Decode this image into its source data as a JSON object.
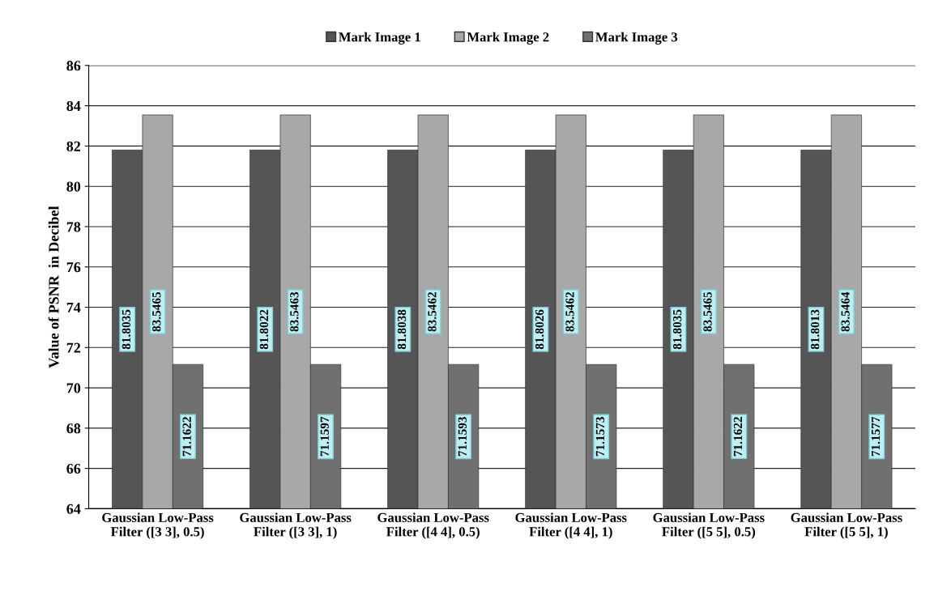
{
  "chart_data": {
    "type": "bar",
    "ylabel": "Value of PSNR  in Decibel",
    "categories": [
      "Gaussian Low-Pass\nFilter ([3 3], 0.5)",
      "Gaussian Low-Pass\nFilter ([3 3], 1)",
      "Gaussian Low-Pass\nFilter ([4 4], 0.5)",
      "Gaussian Low-Pass\nFilter ([4 4], 1)",
      "Gaussian Low-Pass\nFilter ([5 5], 0.5)",
      "Gaussian Low-Pass\nFilter ([5 5], 1)"
    ],
    "series": [
      {
        "name": "Mark Image 1",
        "color": "#555555",
        "values": [
          81.8035,
          81.8022,
          81.8038,
          81.8026,
          81.8035,
          81.8013
        ]
      },
      {
        "name": "Mark Image 2",
        "color": "#a8a8a8",
        "values": [
          83.5465,
          83.5463,
          83.5462,
          83.5462,
          83.5465,
          83.5464
        ]
      },
      {
        "name": "Mark Image 3",
        "color": "#707070",
        "values": [
          71.1622,
          71.1597,
          71.1593,
          71.1573,
          71.1622,
          71.1577
        ]
      }
    ],
    "ylim": [
      64,
      86
    ],
    "yticks": [
      64,
      66,
      68,
      70,
      72,
      74,
      76,
      78,
      80,
      82,
      84,
      86
    ],
    "grid": "y",
    "legend": "top",
    "data_labels": true
  }
}
